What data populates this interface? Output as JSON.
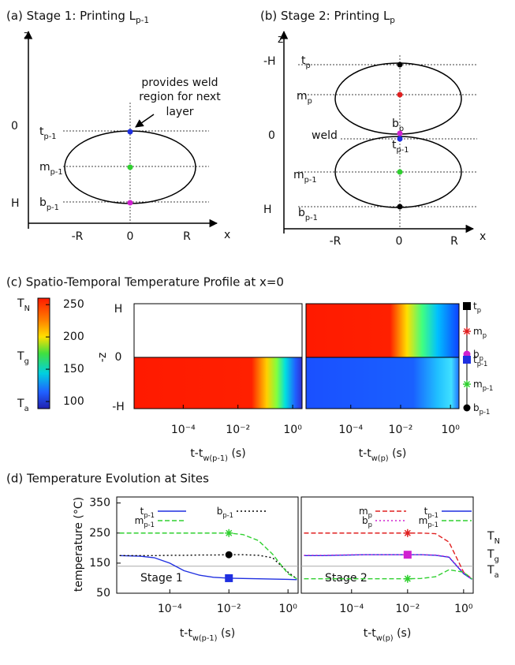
{
  "panel_a": {
    "title": {
      "text": "(a) Stage 1: Printing L",
      "sub": "p-1"
    },
    "axis_z": "z",
    "axis_x": "x",
    "z_labels": [
      "0",
      "H"
    ],
    "x_labels": [
      "-R",
      "0",
      "R"
    ],
    "sites": [
      {
        "label": {
          "text": "t",
          "sub": "p-1"
        },
        "color": "#1f2fe0"
      },
      {
        "label": {
          "text": "m",
          "sub": "p-1"
        },
        "color": "#30d030"
      },
      {
        "label": {
          "text": "b",
          "sub": "p-1"
        },
        "color": "#d020d0"
      }
    ],
    "annotation": [
      "provides weld",
      "region for next",
      "layer"
    ]
  },
  "panel_b": {
    "title": {
      "text": "(b) Stage 2: Printing L",
      "sub": "p"
    },
    "axis_z": "z",
    "axis_x": "x",
    "z_labels": [
      "-H",
      "0",
      "H"
    ],
    "x_labels": [
      "-R",
      "0",
      "R"
    ],
    "weld": "weld",
    "sites": [
      {
        "label": {
          "text": "t",
          "sub": "p"
        },
        "color": "#000000"
      },
      {
        "label": {
          "text": "m",
          "sub": "p"
        },
        "color": "#e02020"
      },
      {
        "label": {
          "text": "b",
          "sub": "p"
        },
        "color": "#d020d0"
      },
      {
        "label": {
          "text": "t",
          "sub": "p-1"
        },
        "color": "#1f2fe0"
      },
      {
        "label": {
          "text": "m",
          "sub": "p-1"
        },
        "color": "#30d030"
      },
      {
        "label": {
          "text": "b",
          "sub": "p-1"
        },
        "color": "#000000"
      }
    ]
  },
  "panel_c": {
    "title": "(c) Spatio-Temporal Temperature Profile at x=0",
    "colorbar": {
      "lim": [
        89,
        260
      ],
      "ticks": [
        100,
        150,
        200,
        250
      ],
      "labels": [
        {
          "text": "T",
          "sub": "N"
        },
        {
          "text": "T",
          "sub": "g"
        },
        {
          "text": "T",
          "sub": "a"
        }
      ]
    },
    "y_label": "-z",
    "y_labels": [
      "H",
      "0",
      "-H"
    ],
    "xlim": [
      1.6e-06,
      2.2
    ],
    "xticks": [
      {
        "value": 0.0001,
        "label": "10⁻⁴"
      },
      {
        "value": 0.01,
        "label": "10⁻²"
      },
      {
        "value": 1,
        "label": "10⁰"
      }
    ],
    "x_labels": [
      {
        "text": "t-t",
        "sub": "w(p-1)",
        "tail": " (s)"
      },
      {
        "text": "t-t",
        "sub": "w(p)",
        "tail": " (s)"
      }
    ],
    "sites": [
      {
        "label": {
          "text": "t",
          "sub": "p"
        },
        "color": "#000000",
        "marker": "square"
      },
      {
        "label": {
          "text": "m",
          "sub": "p"
        },
        "color": "#e02020",
        "marker": "star"
      },
      {
        "label": {
          "text": "b",
          "sub": "p"
        },
        "color": "#d020d0",
        "marker": "circle"
      },
      {
        "label": {
          "text": "t",
          "sub": "p-1"
        },
        "color": "#1f2fe0",
        "marker": "square"
      },
      {
        "label": {
          "text": "m",
          "sub": "p-1"
        },
        "color": "#30d030",
        "marker": "star"
      },
      {
        "label": {
          "text": "b",
          "sub": "p-1"
        },
        "color": "#000000",
        "marker": "circle"
      }
    ]
  },
  "panel_d": {
    "title": "(d) Temperature Evolution at Sites"
  },
  "chart_data": [
    {
      "type": "line",
      "log_x": true,
      "ylabel": "temperature (°C)",
      "xlabel": {
        "text": "t-t",
        "sub": "w(p-1)",
        "tail": " (s)"
      },
      "xlim": [
        1.6e-06,
        2.2
      ],
      "xticks": [
        {
          "value": 0.0001,
          "label": "10⁻⁴"
        },
        {
          "value": 0.01,
          "label": "10⁻²"
        },
        {
          "value": 1,
          "label": "10⁰"
        }
      ],
      "ylim": [
        50,
        370
      ],
      "yticks": [
        50,
        150,
        250,
        350
      ],
      "hline": 140,
      "hline_color": "#aaaaaa",
      "annotation": "Stage 1",
      "marker_x": 0.01,
      "x": [
        2e-06,
        1e-05,
        3e-05,
        0.0001,
        0.0003,
        0.001,
        0.003,
        0.01,
        0.03,
        0.1,
        0.3,
        1,
        2
      ],
      "series": [
        {
          "name": {
            "text": "t",
            "sub": "p-1"
          },
          "color": "#1f2fe0",
          "dash": "solid",
          "marker": "square",
          "values": [
            175,
            173,
            168,
            150,
            125,
            110,
            103,
            100,
            99,
            98,
            97,
            96,
            95
          ]
        },
        {
          "name": {
            "text": "b",
            "sub": "p-1"
          },
          "color": "#000000",
          "dash": "dotted",
          "marker": "circle",
          "values": [
            175,
            175,
            175,
            176,
            176,
            177,
            177,
            178,
            178,
            176,
            168,
            120,
            98
          ]
        },
        {
          "name": {
            "text": "m",
            "sub": "p-1"
          },
          "color": "#30d030",
          "dash": "dashed",
          "marker": "star",
          "values": [
            250,
            250,
            250,
            250,
            250,
            250,
            250,
            250,
            245,
            225,
            180,
            115,
            98
          ]
        }
      ]
    },
    {
      "type": "line",
      "log_x": true,
      "xlabel": {
        "text": "t-t",
        "sub": "w(p)",
        "tail": " (s)"
      },
      "xlim": [
        1.6e-06,
        2.2
      ],
      "xticks": [
        {
          "value": 0.0001,
          "label": "10⁻⁴"
        },
        {
          "value": 0.01,
          "label": "10⁻²"
        },
        {
          "value": 1,
          "label": "10⁰"
        }
      ],
      "ylim": [
        50,
        370
      ],
      "hline": 140,
      "hline_color": "#aaaaaa",
      "annotation": "Stage 2",
      "marker_x": 0.01,
      "side_labels": [
        {
          "text": "T",
          "sub": "N"
        },
        {
          "text": "T",
          "sub": "g"
        },
        {
          "text": "T",
          "sub": "a"
        }
      ],
      "x": [
        2e-06,
        1e-05,
        3e-05,
        0.0001,
        0.0003,
        0.001,
        0.003,
        0.01,
        0.03,
        0.1,
        0.3,
        1,
        2
      ],
      "series": [
        {
          "name": {
            "text": "m",
            "sub": "p"
          },
          "color": "#e02020",
          "dash": "dashed",
          "marker": "star",
          "values": [
            250,
            250,
            250,
            250,
            250,
            250,
            250,
            250,
            250,
            248,
            220,
            120,
            98
          ]
        },
        {
          "name": {
            "text": "t",
            "sub": "p-1"
          },
          "color": "#1f2fe0",
          "dash": "solid",
          "values": [
            175,
            175,
            176,
            177,
            178,
            178,
            178,
            178,
            178,
            176,
            170,
            115,
            96
          ]
        },
        {
          "name": {
            "text": "b",
            "sub": "p"
          },
          "color": "#d020d0",
          "dash": "dotted",
          "marker": "square",
          "values": [
            176,
            176,
            177,
            178,
            178,
            178,
            178,
            178,
            178,
            177,
            171,
            118,
            97
          ]
        },
        {
          "name": {
            "text": "m",
            "sub": "p-1"
          },
          "color": "#30d030",
          "dash": "dashed",
          "marker": "star",
          "values": [
            98,
            98,
            98,
            98,
            98,
            98,
            98,
            98,
            99,
            105,
            128,
            120,
            97
          ]
        }
      ]
    }
  ]
}
